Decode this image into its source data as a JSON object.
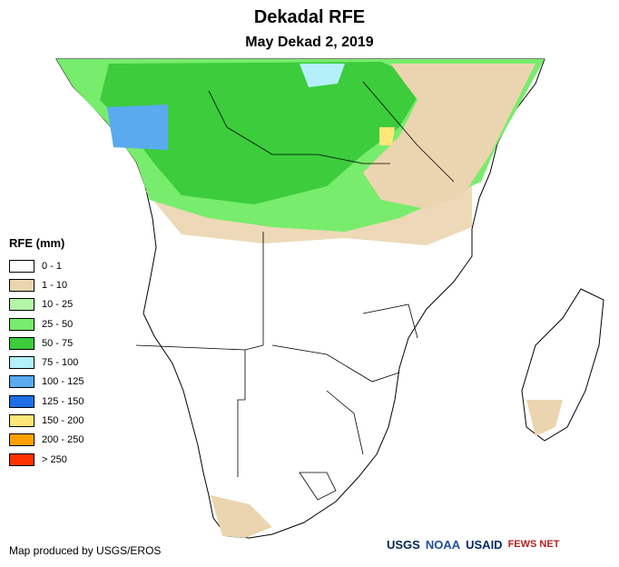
{
  "title": "Dekadal RFE",
  "subtitle": "May Dekad 2, 2019",
  "legend": {
    "title": "RFE (mm)",
    "items": [
      {
        "label": "0 - 1",
        "color": "#ffffff"
      },
      {
        "label": "1 - 10",
        "color": "#ebd5b0"
      },
      {
        "label": "10 - 25",
        "color": "#b4f5a8"
      },
      {
        "label": "25 - 50",
        "color": "#78ec6c"
      },
      {
        "label": "50 - 75",
        "color": "#3ccc3c"
      },
      {
        "label": "75 - 100",
        "color": "#b4f0fa"
      },
      {
        "label": "100 - 125",
        "color": "#5aaaf0"
      },
      {
        "label": "125 - 150",
        "color": "#1e6ee6"
      },
      {
        "label": "150 - 200",
        "color": "#ffe678"
      },
      {
        "label": "200 - 250",
        "color": "#ffa000"
      },
      {
        "label": "> 250",
        "color": "#ff3200"
      }
    ]
  },
  "credit": "Map produced by USGS/EROS",
  "logos": [
    "USGS",
    "NOAA",
    "USAID",
    "FEWS NET"
  ]
}
